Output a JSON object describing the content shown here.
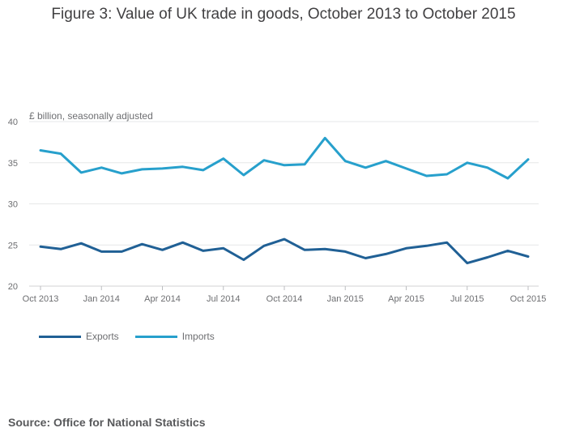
{
  "title": "Figure 3: Value of UK trade in goods, October 2013 to October 2015",
  "source": "Source: Office for National Statistics",
  "chart_data": {
    "type": "line",
    "ylabel": "£ billion, seasonally adjusted",
    "ylim": [
      20,
      40
    ],
    "yticks": [
      20,
      25,
      30,
      35,
      40
    ],
    "grid": true,
    "legend_position": "bottom-left",
    "x": [
      "Oct 2013",
      "Nov 2013",
      "Dec 2013",
      "Jan 2014",
      "Feb 2014",
      "Mar 2014",
      "Apr 2014",
      "May 2014",
      "Jun 2014",
      "Jul 2014",
      "Aug 2014",
      "Sep 2014",
      "Oct 2014",
      "Nov 2014",
      "Dec 2014",
      "Jan 2015",
      "Feb 2015",
      "Mar 2015",
      "Apr 2015",
      "May 2015",
      "Jun 2015",
      "Jul 2015",
      "Aug 2015",
      "Sep 2015",
      "Oct 2015"
    ],
    "xtick_labels": [
      "Oct 2013",
      "",
      "",
      "Jan 2014",
      "",
      "",
      "Apr 2014",
      "",
      "",
      "Jul 2014",
      "",
      "",
      "Oct 2014",
      "",
      "",
      "Jan 2015",
      "",
      "",
      "Apr 2015",
      "",
      "",
      "Jul 2015",
      "",
      "",
      "Oct 2015"
    ],
    "series": [
      {
        "name": "Exports",
        "color": "#206095",
        "values": [
          24.8,
          24.5,
          25.2,
          24.2,
          24.2,
          25.1,
          24.4,
          25.3,
          24.3,
          24.6,
          23.2,
          24.9,
          25.7,
          24.4,
          24.5,
          24.2,
          23.4,
          23.9,
          24.6,
          24.9,
          25.3,
          22.8,
          23.5,
          24.3,
          23.6
        ]
      },
      {
        "name": "Imports",
        "color": "#27a0cc",
        "values": [
          36.5,
          36.1,
          33.8,
          34.4,
          33.7,
          34.2,
          34.3,
          34.5,
          34.1,
          35.5,
          33.5,
          35.3,
          34.7,
          34.8,
          38.0,
          35.2,
          34.4,
          35.2,
          34.3,
          33.4,
          33.6,
          35.0,
          34.4,
          33.1,
          35.4
        ]
      }
    ]
  }
}
